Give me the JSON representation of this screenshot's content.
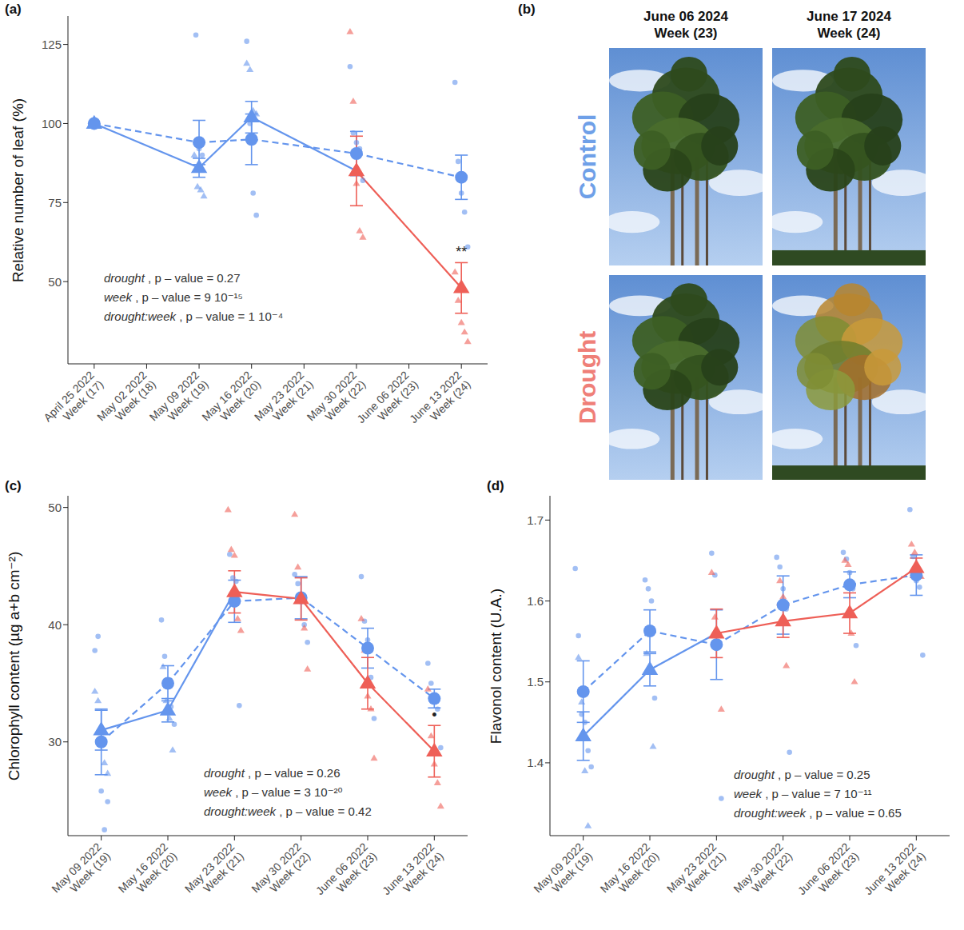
{
  "chart_data": [
    {
      "label": "(a)",
      "type": "line",
      "y_label": "Relative number of leaf (%)",
      "categories": [
        "April 25 2022\nWeek (17)",
        "May 02 2022\nWeek (18)",
        "May 09 2022\nWeek (19)",
        "May 16 2022\nWeek (20)",
        "May 23 2022\nWeek (21)",
        "May 30 2022\nWeek (22)",
        "June 06 2022\nWeek (23)",
        "June 13 2022\nWeek (24)"
      ],
      "ylim": [
        24,
        134
      ],
      "yticks": [
        50,
        75,
        100,
        125
      ],
      "grid": false,
      "series": [
        {
          "color": "#6495ed",
          "marker": "circle",
          "line_style": "dashed",
          "values": [
            100,
            null,
            94,
            95,
            null,
            90.5,
            null,
            83
          ],
          "errors": [
            null,
            null,
            7,
            8,
            null,
            7,
            null,
            7
          ],
          "points": [
            [],
            [],
            [
              128,
              92,
              90
            ],
            [
              126,
              100,
              78,
              71
            ],
            [],
            [
              118,
              97,
              94,
              92,
              82
            ],
            [],
            [
              113,
              88,
              78,
              72,
              61
            ]
          ]
        },
        {
          "color": "#6495ed",
          "marker": "triangle",
          "line_style": "solid",
          "colors": [
            "#6495ed",
            null,
            "#6495ed",
            "#6495ed",
            null,
            "#ee5f57",
            null,
            "#ee5f57"
          ],
          "values": [
            100,
            null,
            86,
            102,
            null,
            85,
            null,
            48
          ],
          "errors": [
            null,
            null,
            3,
            5,
            null,
            11,
            null,
            8
          ],
          "points": [
            [],
            [],
            [
              90,
              80,
              79,
              77
            ],
            [
              119,
              117,
              104,
              103
            ],
            [],
            [
              129,
              107,
              81,
              66,
              64
            ],
            [],
            [
              53,
              44,
              37,
              34,
              31
            ]
          ],
          "significance": [
            null,
            null,
            null,
            null,
            null,
            null,
            null,
            "**"
          ]
        }
      ],
      "annotations": [
        {
          "term": "drought",
          "text": " , p – value = 0.27"
        },
        {
          "term": "week",
          "text": " , p – value = 9  10⁻¹⁵"
        },
        {
          "term": "drought:week",
          "text": " , p – value = 1  10⁻⁴"
        }
      ]
    },
    {
      "label": "(c)",
      "type": "line",
      "y_label": "Chlorophyll content (µg a+b cm⁻²)",
      "categories": [
        "May 09 2022\nWeek (19)",
        "May 16 2022\nWeek (20)",
        "May 23 2022\nWeek (21)",
        "May 30 2022\nWeek (22)",
        "June 06 2022\nWeek (23)",
        "June 13 2022\nWeek (24)"
      ],
      "ylim": [
        22,
        51
      ],
      "yticks": [
        30,
        40,
        50
      ],
      "grid": false,
      "series": [
        {
          "color": "#6495ed",
          "marker": "circle",
          "line_style": "dashed",
          "values": [
            30,
            35,
            42,
            42.3,
            38,
            33.7
          ],
          "errors": [
            2.8,
            1.5,
            1.8,
            1.8,
            1.7,
            0.8
          ],
          "points": [
            [
              37.8,
              39,
              25.8,
              22.5,
              24.9
            ],
            [
              40.4,
              37.3,
              35,
              33,
              31.5
            ],
            [
              46,
              44,
              43.7,
              33.1
            ],
            [
              44.3,
              43.5,
              42,
              40,
              38.5
            ],
            [
              44.1,
              40.3,
              38.7,
              35.5,
              32
            ],
            [
              36.7,
              35,
              34,
              32.8,
              29.5
            ]
          ]
        },
        {
          "color": "#6495ed",
          "marker": "triangle",
          "line_style": "solid",
          "colors": [
            "#6495ed",
            "#6495ed",
            "#ee5f57",
            "#ee5f57",
            "#ee5f57",
            "#ee5f57"
          ],
          "values": [
            31,
            32.7,
            42.8,
            42.2,
            35,
            29.2
          ],
          "errors": [
            1.7,
            1,
            1.8,
            1.8,
            2.2,
            2.2
          ],
          "points": [
            [
              34.3,
              33.5,
              29.8,
              28.2,
              27.3
            ],
            [
              36.4,
              33.5,
              32,
              29.3
            ],
            [
              49.8,
              46.4,
              45.9,
              40.5,
              39.5
            ],
            [
              49.4,
              44.9,
              42.3,
              39.7,
              36.2
            ],
            [
              40.5,
              37.8,
              33.9,
              32.8,
              28.6
            ],
            [
              34.5,
              30.5,
              28.1,
              26.5,
              24.5
            ]
          ],
          "significance": [
            null,
            null,
            null,
            null,
            null,
            "•"
          ]
        }
      ],
      "annotations": [
        {
          "term": "drought",
          "text": " , p – value = 0.26"
        },
        {
          "term": "week",
          "text": " , p – value = 3  10⁻²⁰"
        },
        {
          "term": "drought:week",
          "text": " , p – value = 0.42"
        }
      ]
    },
    {
      "label": "(d)",
      "type": "line",
      "y_label": "Flavonol content (U.A.)",
      "categories": [
        "May 09 2022\nWeek (19)",
        "May 16 2022\nWeek (20)",
        "May 23 2022\nWeek (21)",
        "May 30 2022\nWeek (22)",
        "June 06 2022\nWeek (23)",
        "June 13 2022\nWeek (24)"
      ],
      "ylim": [
        1.31,
        1.73
      ],
      "yticks": [
        1.4,
        1.5,
        1.6,
        1.7
      ],
      "grid": false,
      "series": [
        {
          "color": "#6495ed",
          "marker": "circle",
          "line_style": "dashed",
          "values": [
            1.488,
            1.563,
            1.546,
            1.595,
            1.62,
            1.632
          ],
          "errors": [
            0.038,
            0.026,
            0.043,
            0.036,
            0.016,
            0.025
          ],
          "points": [
            [
              1.64,
              1.557,
              1.46,
              1.45,
              1.415,
              1.395
            ],
            [
              1.626,
              1.615,
              1.6,
              1.48
            ],
            [
              1.659,
              1.632,
              1.55,
              1.356
            ],
            [
              1.654,
              1.642,
              1.615,
              1.59,
              1.413
            ],
            [
              1.66,
              1.652,
              1.635,
              1.615,
              1.545
            ],
            [
              1.713,
              1.655,
              1.625,
              1.617,
              1.533
            ]
          ]
        },
        {
          "color": "#6495ed",
          "marker": "triangle",
          "line_style": "solid",
          "colors": [
            "#6495ed",
            "#6495ed",
            "#ee5f57",
            "#ee5f57",
            "#ee5f57",
            "#ee5f57"
          ],
          "values": [
            1.433,
            1.515,
            1.56,
            1.575,
            1.585,
            1.641
          ],
          "errors": [
            0.03,
            0.02,
            0.03,
            0.02,
            0.025,
            0.012
          ],
          "points": [
            [
              1.53,
              1.475,
              1.39,
              1.322
            ],
            [
              1.535,
              1.52,
              1.42
            ],
            [
              1.635,
              1.58,
              1.545,
              1.466
            ],
            [
              1.625,
              1.605,
              1.52
            ],
            [
              1.65,
              1.645,
              1.56,
              1.5
            ],
            [
              1.67,
              1.66,
              1.64,
              1.63
            ]
          ]
        }
      ],
      "annotations": [
        {
          "term": "drought",
          "text": " , p – value = 0.25"
        },
        {
          "term": "week",
          "text": " , p – value = 7  10⁻¹¹"
        },
        {
          "term": "drought:week",
          "text": " , p – value = 0.65"
        }
      ]
    }
  ],
  "photo_panel": {
    "label": "(b)",
    "columns": [
      "June 06 2024\nWeek (23)",
      "June 17 2024\nWeek (24)"
    ],
    "rows": [
      {
        "name": "Control",
        "color": "#6fa0e8"
      },
      {
        "name": "Drought",
        "color": "#ef7f78"
      }
    ]
  }
}
